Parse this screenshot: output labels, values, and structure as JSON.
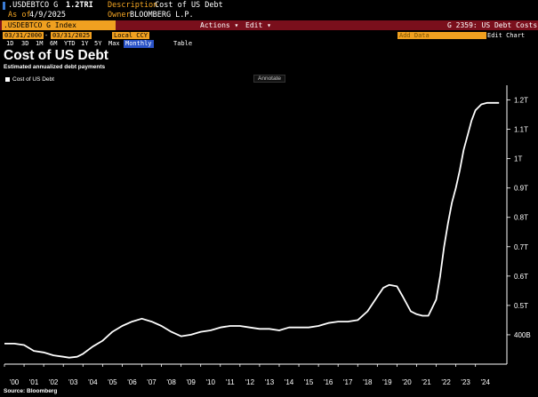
{
  "header": {
    "ticker": ".USDEBTCO G",
    "value": "1.2TRI",
    "description_label": "Description",
    "description": "Cost of US Debt",
    "asof_label": "As of",
    "asof": "4/9/2025",
    "owner_label": "Owner",
    "owner": "BLOOMBERG L.P."
  },
  "toolbar": {
    "index_field": ".USDEBTCO G Index",
    "actions_label": "Actions ▾",
    "edit_label": "Edit ▾",
    "chart_id": "G 2359: US Debt Costs",
    "start_date": "03/31/2000",
    "end_date": "03/31/2025",
    "currency": "Local CCY",
    "add_data": "Add Data",
    "edit_chart": "Edit Chart",
    "ranges": [
      "1D",
      "3D",
      "1M",
      "6M",
      "YTD",
      "1Y",
      "5Y",
      "Max"
    ],
    "frequency": "Monthly",
    "table_label": "Table"
  },
  "annotate_label": "Annotate",
  "source": "Source: Bloomberg",
  "colors": {
    "line": "#ffffff",
    "background": "#000000",
    "accent": "#f5a623",
    "bar": "#7a0f1c"
  },
  "chart_data": {
    "type": "line",
    "title": "Cost of US Debt",
    "subtitle": "Estimated annualized debt payments",
    "grid": false,
    "legend_position": "top-left",
    "y_unit": "USD trillions",
    "ylim": [
      0.3,
      1.25
    ],
    "y_ticks": [
      {
        "value": 0.4,
        "label": "400B"
      },
      {
        "value": 0.5,
        "label": "0.5T"
      },
      {
        "value": 0.6,
        "label": "0.6T"
      },
      {
        "value": 0.7,
        "label": "0.7T"
      },
      {
        "value": 0.8,
        "label": "0.8T"
      },
      {
        "value": 0.9,
        "label": "0.9T"
      },
      {
        "value": 1.0,
        "label": "1T"
      },
      {
        "value": 1.1,
        "label": "1.1T"
      },
      {
        "value": 1.2,
        "label": "1.2T"
      }
    ],
    "x_ticks": [
      "'00",
      "'01",
      "'02",
      "'03",
      "'04",
      "'05",
      "'06",
      "'07",
      "'08",
      "'09",
      "'10",
      "'11",
      "'12",
      "'13",
      "'14",
      "'15",
      "'16",
      "'17",
      "'18",
      "'19",
      "'20",
      "'21",
      "'22",
      "'23",
      "'24"
    ],
    "xlim": [
      2000.0,
      2025.6
    ],
    "series": [
      {
        "name": "Cost of US Debt",
        "x": [
          2000.0,
          2000.5,
          2001.0,
          2001.5,
          2002.0,
          2002.5,
          2003.0,
          2003.3,
          2003.7,
          2004.0,
          2004.5,
          2005.0,
          2005.5,
          2006.0,
          2006.5,
          2007.0,
          2007.5,
          2008.0,
          2008.5,
          2009.0,
          2009.5,
          2010.0,
          2010.5,
          2011.0,
          2011.5,
          2012.0,
          2012.5,
          2013.0,
          2013.5,
          2014.0,
          2014.5,
          2015.0,
          2015.5,
          2016.0,
          2016.5,
          2017.0,
          2017.5,
          2018.0,
          2018.5,
          2019.0,
          2019.3,
          2019.6,
          2020.0,
          2020.3,
          2020.7,
          2021.0,
          2021.3,
          2021.6,
          2022.0,
          2022.2,
          2022.4,
          2022.6,
          2022.8,
          2023.0,
          2023.2,
          2023.4,
          2023.6,
          2023.8,
          2024.0,
          2024.3,
          2024.6,
          2024.9,
          2025.2
        ],
        "values": [
          0.37,
          0.37,
          0.365,
          0.345,
          0.34,
          0.33,
          0.325,
          0.322,
          0.325,
          0.335,
          0.36,
          0.38,
          0.41,
          0.43,
          0.445,
          0.455,
          0.445,
          0.43,
          0.41,
          0.395,
          0.4,
          0.41,
          0.415,
          0.425,
          0.43,
          0.43,
          0.425,
          0.42,
          0.42,
          0.415,
          0.425,
          0.425,
          0.425,
          0.43,
          0.44,
          0.445,
          0.445,
          0.45,
          0.48,
          0.53,
          0.56,
          0.57,
          0.565,
          0.53,
          0.48,
          0.47,
          0.465,
          0.465,
          0.52,
          0.6,
          0.7,
          0.78,
          0.85,
          0.9,
          0.96,
          1.03,
          1.08,
          1.13,
          1.165,
          1.185,
          1.19,
          1.19,
          1.19
        ]
      }
    ]
  }
}
